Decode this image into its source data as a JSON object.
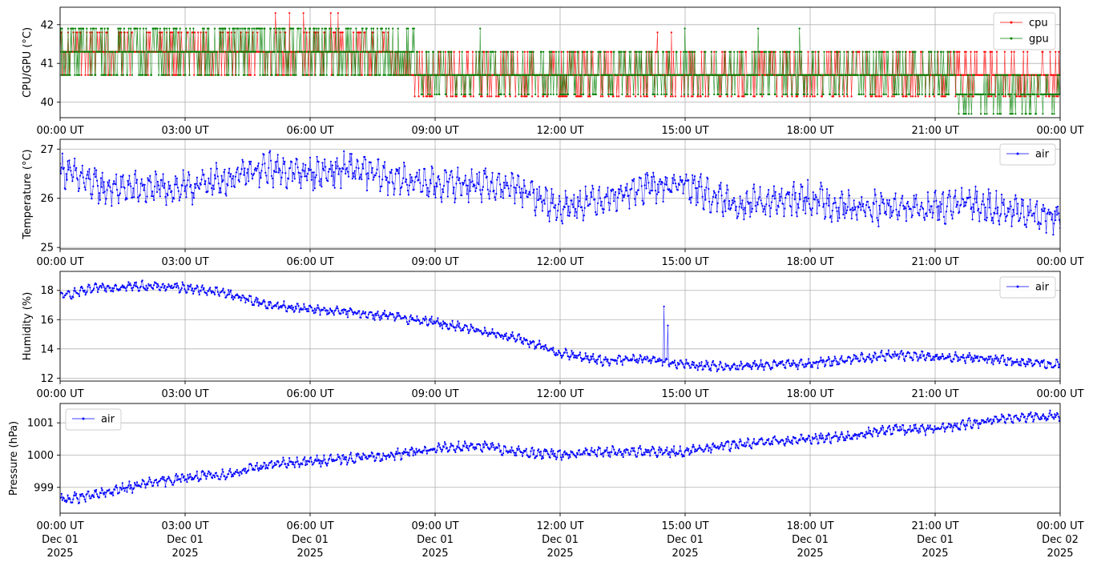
{
  "x_ticks": [
    "00:00 UT",
    "03:00 UT",
    "06:00 UT",
    "09:00 UT",
    "12:00 UT",
    "15:00 UT",
    "18:00 UT",
    "21:00 UT",
    "00:00 UT"
  ],
  "x_tick_dates": [
    [
      "Dec 01",
      "2025"
    ],
    [
      "Dec 01",
      "2025"
    ],
    [
      "Dec 01",
      "2025"
    ],
    [
      "Dec 01",
      "2025"
    ],
    [
      "Dec 01",
      "2025"
    ],
    [
      "Dec 01",
      "2025"
    ],
    [
      "Dec 01",
      "2025"
    ],
    [
      "Dec 01",
      "2025"
    ],
    [
      "Dec 02",
      "2025"
    ]
  ],
  "chart_data": [
    {
      "type": "line",
      "ylabel": "CPU/GPU (°C)",
      "x_range": [
        "2025-12-01 00:00",
        "2025-12-02 00:00"
      ],
      "ylim": [
        39.6,
        42.45
      ],
      "yticks": [
        40,
        41,
        42
      ],
      "grid": true,
      "legend_position": "upper-right",
      "series": [
        {
          "name": "cpu",
          "color": "#ff0000",
          "levels": [
            39.7,
            40.15,
            40.7,
            41.3,
            41.8,
            42.3
          ],
          "segments": [
            [
              0,
              8.5,
              40.7,
              41.8,
              0.35
            ],
            [
              8.5,
              24,
              39.7,
              41.3,
              0.35
            ]
          ],
          "values_hourly": [
            41.2,
            41.1,
            41.1,
            41.0,
            41.1,
            41.2,
            41.2,
            41.1,
            41.0,
            40.7,
            40.7,
            40.7,
            40.6,
            40.7,
            40.7,
            40.7,
            40.7,
            40.7,
            40.7,
            40.6,
            40.6,
            40.6,
            40.6,
            40.5,
            40.5
          ],
          "spikes": [
            [
              "05:10",
              42.3
            ],
            [
              "05:30",
              42.3
            ],
            [
              "05:50",
              42.3
            ],
            [
              "06:30",
              42.3
            ],
            [
              "06:40",
              42.3
            ],
            [
              "14:20",
              41.8
            ],
            [
              "14:40",
              41.8
            ],
            [
              "22:40",
              41.3
            ]
          ]
        },
        {
          "name": "gpu",
          "color": "#008000",
          "levels": [
            39.7,
            40.2,
            40.7,
            41.3,
            41.9
          ],
          "segments": [
            [
              0,
              8.5,
              40.7,
              41.9,
              0.55
            ],
            [
              8.5,
              24,
              39.7,
              41.3,
              0.45
            ]
          ],
          "values_hourly": [
            41.4,
            41.3,
            41.3,
            41.2,
            41.3,
            41.3,
            41.3,
            41.3,
            41.2,
            40.8,
            40.8,
            40.7,
            40.5,
            40.6,
            40.7,
            40.8,
            40.8,
            40.8,
            40.7,
            40.6,
            40.5,
            40.5,
            40.4,
            40.4,
            40.4
          ],
          "spikes": [
            [
              "10:05",
              41.9
            ],
            [
              "17:45",
              41.9
            ],
            [
              "16:45",
              41.9
            ],
            [
              "15:00",
              41.9
            ]
          ]
        }
      ]
    },
    {
      "type": "line",
      "ylabel": "Temperature (°C)",
      "x_range": [
        "2025-12-01 00:00",
        "2025-12-02 00:00"
      ],
      "ylim": [
        24.97,
        27.2
      ],
      "yticks": [
        25,
        26,
        27
      ],
      "grid": true,
      "legend_position": "upper-right",
      "series": [
        {
          "name": "air",
          "color": "#0000ff",
          "values_hourly": [
            26.6,
            26.2,
            26.2,
            26.2,
            26.4,
            26.6,
            26.5,
            26.6,
            26.4,
            26.3,
            26.3,
            26.2,
            25.8,
            26.0,
            26.2,
            26.3,
            25.9,
            25.9,
            26.0,
            25.8,
            25.8,
            25.8,
            25.9,
            25.7,
            25.6
          ],
          "amplitude": 0.3
        }
      ]
    },
    {
      "type": "line",
      "ylabel": "Humidity (%)",
      "x_range": [
        "2025-12-01 00:00",
        "2025-12-02 00:00"
      ],
      "ylim": [
        11.8,
        19.3
      ],
      "yticks": [
        12,
        14,
        16,
        18
      ],
      "grid": true,
      "legend_position": "upper-right",
      "series": [
        {
          "name": "air",
          "color": "#0000ff",
          "values_hourly": [
            17.6,
            18.2,
            18.3,
            18.2,
            17.8,
            17.0,
            16.7,
            16.5,
            16.2,
            15.8,
            15.3,
            14.7,
            13.7,
            13.2,
            13.3,
            12.9,
            12.8,
            12.9,
            13.0,
            13.3,
            13.6,
            13.4,
            13.4,
            13.1,
            12.9
          ],
          "amplitude": 0.3,
          "spikes": [
            [
              "14:30",
              16.9
            ],
            [
              "14:35",
              15.6
            ]
          ]
        }
      ]
    },
    {
      "type": "line",
      "ylabel": "Pressure (hPa)",
      "x_range": [
        "2025-12-01 00:00",
        "2025-12-02 00:00"
      ],
      "ylim": [
        998.2,
        1001.6
      ],
      "yticks": [
        999,
        1000,
        1001
      ],
      "grid": true,
      "legend_position": "upper-left",
      "series": [
        {
          "name": "air",
          "color": "#0000ff",
          "values_hourly": [
            998.6,
            998.8,
            999.1,
            999.3,
            999.4,
            999.7,
            999.8,
            999.9,
            1000.0,
            1000.2,
            1000.3,
            1000.1,
            1000.0,
            1000.1,
            1000.1,
            1000.1,
            1000.3,
            1000.4,
            1000.5,
            1000.6,
            1000.8,
            1000.8,
            1001.0,
            1001.2,
            1001.2
          ],
          "amplitude": 0.15
        }
      ]
    }
  ]
}
